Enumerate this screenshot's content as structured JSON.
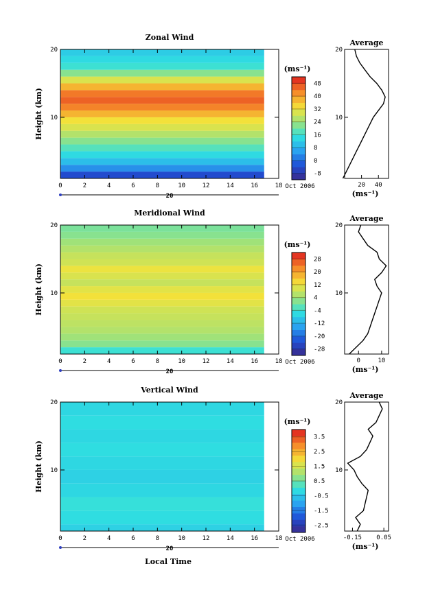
{
  "figure": {
    "date_label": "Oct 2006",
    "day_label": "20",
    "xlabel": "Local Time",
    "ylabel": "Height (km)",
    "avg_title": "Average",
    "unit_label": "(ms⁻¹)"
  },
  "chart_data": [
    {
      "type": "heatmap",
      "title": "Zonal Wind",
      "xlabel": "Local Time",
      "ylabel": "Height (km)",
      "x_ticks": [
        "0",
        "2",
        "4",
        "6",
        "8",
        "10",
        "12",
        "14",
        "16",
        "18"
      ],
      "y_ticks": [
        "10",
        "20"
      ],
      "xlim": [
        0,
        18
      ],
      "ylim": [
        1,
        20
      ],
      "colorbar_ticks": [
        "-8",
        "0",
        "8",
        "16",
        "24",
        "32",
        "40",
        "48"
      ],
      "colorbar_range": [
        -12,
        52
      ],
      "bands": [
        {
          "h": 2,
          "v": -4
        },
        {
          "h": 3,
          "v": 4
        },
        {
          "h": 4,
          "v": 10
        },
        {
          "h": 5,
          "v": 14
        },
        {
          "h": 6,
          "v": 18
        },
        {
          "h": 7,
          "v": 22
        },
        {
          "h": 8,
          "v": 26
        },
        {
          "h": 9,
          "v": 30
        },
        {
          "h": 10,
          "v": 33
        },
        {
          "h": 11,
          "v": 38
        },
        {
          "h": 12,
          "v": 43
        },
        {
          "h": 13,
          "v": 46
        },
        {
          "h": 14,
          "v": 44
        },
        {
          "h": 15,
          "v": 38
        },
        {
          "h": 16,
          "v": 30
        },
        {
          "h": 17,
          "v": 22
        },
        {
          "h": 18,
          "v": 16
        },
        {
          "h": 19,
          "v": 14
        },
        {
          "h": 20,
          "v": 12
        }
      ],
      "average_profile": {
        "x_ticks": [
          "20",
          "40"
        ],
        "xlim": [
          0,
          52
        ],
        "xlabel": "(ms⁻¹)",
        "height": [
          1,
          2,
          3,
          4,
          5,
          6,
          7,
          8,
          9,
          10,
          11,
          12,
          13,
          14,
          15,
          16,
          17,
          18,
          19,
          20
        ],
        "value": [
          -2,
          2,
          6,
          10,
          14,
          18,
          22,
          26,
          30,
          34,
          40,
          46,
          48,
          44,
          38,
          30,
          24,
          18,
          14,
          12
        ]
      }
    },
    {
      "type": "heatmap",
      "title": "Meridional Wind",
      "xlabel": "Local Time",
      "ylabel": "Height (km)",
      "x_ticks": [
        "0",
        "2",
        "4",
        "6",
        "8",
        "10",
        "12",
        "14",
        "16",
        "18"
      ],
      "y_ticks": [
        "10",
        "20"
      ],
      "xlim": [
        0,
        18
      ],
      "ylim": [
        1,
        20
      ],
      "colorbar_ticks": [
        "-28",
        "-20",
        "-12",
        "-4",
        "4",
        "12",
        "20",
        "28"
      ],
      "colorbar_range": [
        -32,
        32
      ],
      "bands": [
        {
          "h": 2,
          "v": -4
        },
        {
          "h": 3,
          "v": 2
        },
        {
          "h": 4,
          "v": 4
        },
        {
          "h": 5,
          "v": 6
        },
        {
          "h": 6,
          "v": 7
        },
        {
          "h": 7,
          "v": 8
        },
        {
          "h": 8,
          "v": 9
        },
        {
          "h": 9,
          "v": 11
        },
        {
          "h": 10,
          "v": 13
        },
        {
          "h": 11,
          "v": 11
        },
        {
          "h": 12,
          "v": 8
        },
        {
          "h": 13,
          "v": 10
        },
        {
          "h": 14,
          "v": 12
        },
        {
          "h": 15,
          "v": 9
        },
        {
          "h": 16,
          "v": 8
        },
        {
          "h": 17,
          "v": 6
        },
        {
          "h": 18,
          "v": 4
        },
        {
          "h": 19,
          "v": 2
        },
        {
          "h": 20,
          "v": 1
        }
      ],
      "average_profile": {
        "x_ticks": [
          "0",
          "10"
        ],
        "xlim": [
          -6,
          13
        ],
        "xlabel": "(ms⁻¹)",
        "height": [
          1,
          2,
          3,
          4,
          5,
          6,
          7,
          8,
          9,
          10,
          11,
          12,
          13,
          14,
          15,
          16,
          17,
          18,
          19,
          20
        ],
        "value": [
          -4,
          -1,
          2,
          4,
          5,
          6,
          7,
          8,
          9,
          10,
          8,
          7,
          10,
          12,
          9,
          8,
          4,
          2,
          0,
          1
        ]
      }
    },
    {
      "type": "heatmap",
      "title": "Vertical Wind",
      "xlabel": "Local Time",
      "ylabel": "Height (km)",
      "x_ticks": [
        "0",
        "2",
        "4",
        "6",
        "8",
        "10",
        "12",
        "14",
        "16",
        "18"
      ],
      "y_ticks": [
        "10",
        "20"
      ],
      "xlim": [
        0,
        18
      ],
      "ylim": [
        1,
        20
      ],
      "colorbar_ticks": [
        "-2.5",
        "-1.5",
        "-0.5",
        "0.5",
        "1.5",
        "2.5",
        "3.5"
      ],
      "colorbar_range": [
        -3,
        4
      ],
      "bands": [
        {
          "h": 2,
          "v": -0.3
        },
        {
          "h": 4,
          "v": -0.1
        },
        {
          "h": 6,
          "v": 0.0
        },
        {
          "h": 8,
          "v": -0.2
        },
        {
          "h": 10,
          "v": -0.3
        },
        {
          "h": 12,
          "v": -0.2
        },
        {
          "h": 14,
          "v": -0.1
        },
        {
          "h": 16,
          "v": -0.2
        },
        {
          "h": 18,
          "v": -0.1
        },
        {
          "h": 20,
          "v": -0.2
        }
      ],
      "average_profile": {
        "x_ticks": [
          "-0.15",
          "0.05"
        ],
        "xlim": [
          -0.2,
          0.08
        ],
        "xlabel": "(ms⁻¹)",
        "height": [
          1,
          2,
          3,
          4,
          5,
          6,
          7,
          8,
          9,
          10,
          11,
          12,
          13,
          14,
          15,
          16,
          17,
          18,
          19,
          20
        ],
        "value": [
          -0.12,
          -0.1,
          -0.13,
          -0.08,
          -0.07,
          -0.06,
          -0.05,
          -0.09,
          -0.12,
          -0.14,
          -0.18,
          -0.1,
          -0.06,
          -0.04,
          -0.02,
          -0.05,
          0.0,
          0.02,
          0.04,
          0.02
        ]
      }
    }
  ]
}
